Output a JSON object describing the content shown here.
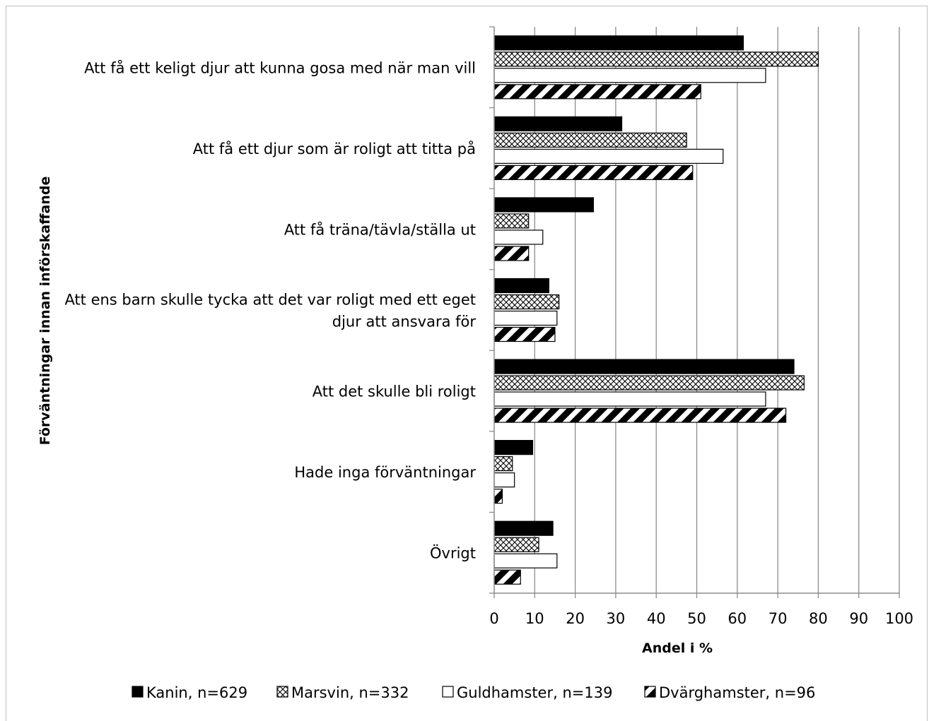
{
  "chart_data": {
    "type": "bar",
    "orientation": "horizontal",
    "title": "",
    "xlabel": "Andel i %",
    "ylabel": "Förväntningar innan införskaffande",
    "xlim": [
      0,
      100
    ],
    "x_ticks": [
      "0",
      "10",
      "20",
      "30",
      "40",
      "50",
      "60",
      "70",
      "80",
      "90",
      "100"
    ],
    "grid": "vertical",
    "legend_position": "bottom",
    "categories": [
      [
        "Att få ett keligt djur att kunna gosa med när man vill"
      ],
      [
        "Att få ett djur som är roligt att titta på"
      ],
      [
        "Att få träna/tävla/ställa ut"
      ],
      [
        "Att ens barn skulle tycka att det var roligt med ett eget",
        "djur att ansvara för"
      ],
      [
        "Att det skulle bli roligt"
      ],
      [
        "Hade inga förväntningar"
      ],
      [
        "Övrigt"
      ]
    ],
    "series": [
      {
        "name": "Kanin, n=629",
        "pattern": "solid-black",
        "values": [
          61.5,
          31.5,
          24.5,
          13.5,
          74,
          9.5,
          14.5
        ]
      },
      {
        "name": "Marsvin, n=332",
        "pattern": "crosshatch",
        "values": [
          80,
          47.5,
          8.5,
          16,
          76.5,
          4.5,
          11
        ]
      },
      {
        "name": "Guldhamster, n=139",
        "pattern": "white",
        "values": [
          67,
          56.5,
          12,
          15.5,
          67,
          5,
          15.5
        ]
      },
      {
        "name": "Dvärghamster, n=96",
        "pattern": "diagonal-stripes",
        "values": [
          51,
          49,
          8.5,
          15,
          72,
          2,
          6.5
        ]
      }
    ]
  }
}
